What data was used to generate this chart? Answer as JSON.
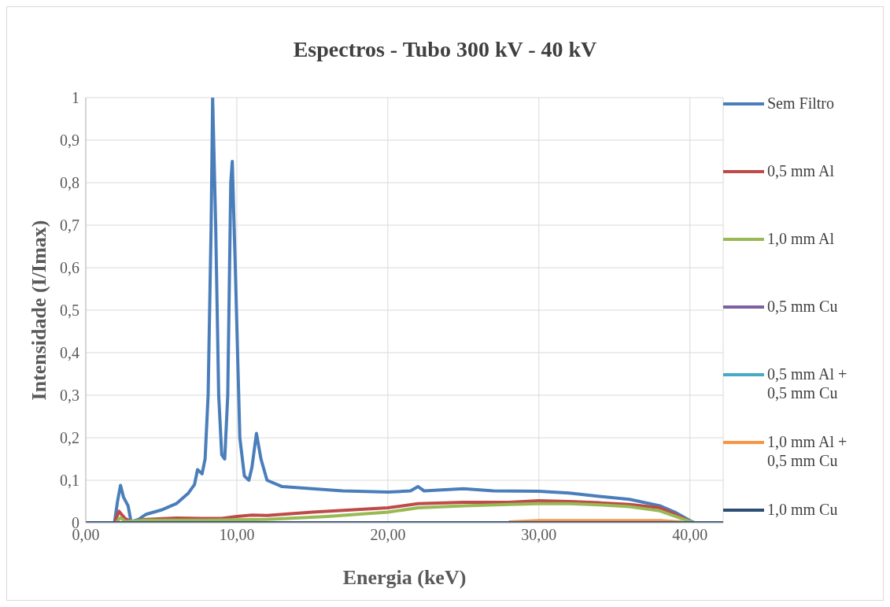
{
  "chart_data": {
    "type": "line",
    "title": "Espectros - Tubo 300 kV - 40 kV",
    "xlabel": "Energia (keV)",
    "ylabel": "Intensidade (I/Imax)",
    "xlim": [
      0,
      42.2
    ],
    "xticks": [
      {
        "value": 0,
        "label": "0,00"
      },
      {
        "value": 10,
        "label": "10,00"
      },
      {
        "value": 20,
        "label": "20,00"
      },
      {
        "value": 30,
        "label": "30,00"
      },
      {
        "value": 40,
        "label": "40,00"
      }
    ],
    "ylim": [
      0,
      1
    ],
    "yticks": [
      {
        "value": 0,
        "label": "0"
      },
      {
        "value": 0.1,
        "label": "0,1"
      },
      {
        "value": 0.2,
        "label": "0,2"
      },
      {
        "value": 0.3,
        "label": "0,3"
      },
      {
        "value": 0.4,
        "label": "0,4"
      },
      {
        "value": 0.5,
        "label": "0,5"
      },
      {
        "value": 0.6,
        "label": "0,6"
      },
      {
        "value": 0.7,
        "label": "0,7"
      },
      {
        "value": 0.8,
        "label": "0,8"
      },
      {
        "value": 0.9,
        "label": "0,9"
      },
      {
        "value": 1,
        "label": "1"
      }
    ],
    "grid": true,
    "legend": "right",
    "marker": "none",
    "line_style": "solid",
    "series": [
      {
        "name": "Sem Filtro",
        "color": "#4a7ebb",
        "x": [
          0,
          1.9,
          2.1,
          2.3,
          2.5,
          2.8,
          3.0,
          3.5,
          4,
          5,
          6,
          6.8,
          7.2,
          7.4,
          7.7,
          7.9,
          8.1,
          8.3,
          8.4,
          8.6,
          8.8,
          9.0,
          9.2,
          9.4,
          9.6,
          9.7,
          9.9,
          10.2,
          10.5,
          10.8,
          11.0,
          11.3,
          11.6,
          12.0,
          13,
          15,
          17,
          20,
          21.5,
          22,
          22.4,
          25,
          27,
          30,
          32,
          34,
          36,
          38,
          39,
          40,
          40.3,
          42.2
        ],
        "values": [
          0,
          0,
          0.05,
          0.088,
          0.06,
          0.04,
          0.002,
          0.008,
          0.02,
          0.03,
          0.045,
          0.07,
          0.09,
          0.125,
          0.115,
          0.15,
          0.3,
          0.7,
          1.0,
          0.7,
          0.3,
          0.16,
          0.15,
          0.3,
          0.8,
          0.85,
          0.6,
          0.2,
          0.11,
          0.1,
          0.13,
          0.21,
          0.15,
          0.1,
          0.085,
          0.08,
          0.075,
          0.072,
          0.075,
          0.085,
          0.075,
          0.08,
          0.075,
          0.074,
          0.07,
          0.062,
          0.055,
          0.04,
          0.025,
          0.005,
          0,
          0
        ]
      },
      {
        "name": "0,5 mm Al",
        "color": "#be4b48",
        "x": [
          0,
          1.9,
          2.2,
          2.6,
          3,
          4,
          6,
          8,
          9,
          10,
          11,
          12,
          15,
          20,
          22,
          25,
          28,
          30,
          32,
          34,
          36,
          38,
          39,
          40,
          40.3,
          42.2
        ],
        "values": [
          0,
          0,
          0.027,
          0.01,
          0.003,
          0.008,
          0.011,
          0.01,
          0.01,
          0.015,
          0.018,
          0.017,
          0.025,
          0.035,
          0.045,
          0.048,
          0.048,
          0.052,
          0.05,
          0.047,
          0.043,
          0.035,
          0.02,
          0.003,
          0,
          0
        ]
      },
      {
        "name": "1,0 mm Al",
        "color": "#98b954",
        "x": [
          0,
          2,
          2.3,
          2.6,
          4,
          8,
          12,
          16,
          20,
          22,
          25,
          28,
          30,
          32,
          34,
          36,
          38,
          40,
          40.3,
          42.2
        ],
        "values": [
          0,
          0,
          0.012,
          0.003,
          0.006,
          0.006,
          0.008,
          0.015,
          0.025,
          0.035,
          0.04,
          0.043,
          0.045,
          0.045,
          0.042,
          0.038,
          0.028,
          0.003,
          0,
          0
        ]
      },
      {
        "name": "0,5 mm Cu",
        "color": "#7d60a0"
      },
      {
        "name": "0,5 mm Al + 0,5 mm Cu",
        "color": "#46aac5"
      },
      {
        "name": "1,0 mm Al + 0,5 mm Cu",
        "color": "#f79646",
        "x": [
          28,
          30,
          34,
          38,
          39.5
        ],
        "values": [
          0.002,
          0.005,
          0.005,
          0.005,
          0.002
        ]
      },
      {
        "name": "1,0 mm Cu",
        "color": "#2c4d75",
        "x": [
          0,
          42.2
        ],
        "values": [
          0,
          0
        ]
      }
    ]
  }
}
